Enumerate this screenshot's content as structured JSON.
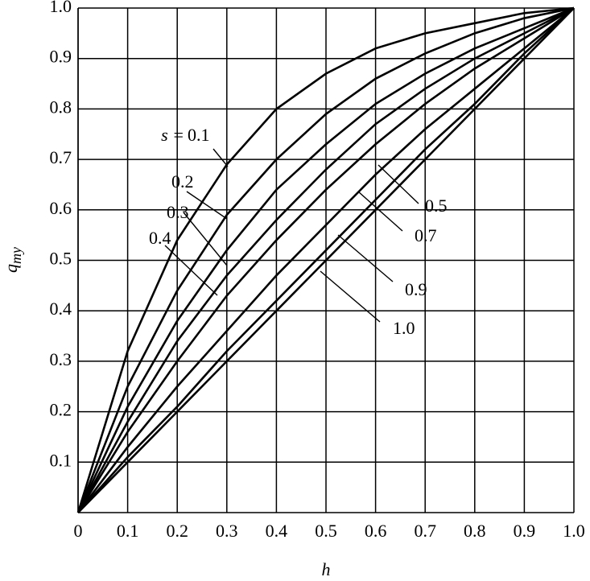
{
  "chart_data": {
    "type": "line",
    "xlabel": "h",
    "ylabel": "q",
    "ylabel_sub": "my",
    "series_label_prefix": "s =",
    "x": [
      0,
      0.1,
      0.2,
      0.3,
      0.4,
      0.5,
      0.6,
      0.7,
      0.8,
      0.9,
      1.0
    ],
    "xlim": [
      0,
      1.0
    ],
    "ylim": [
      0,
      1.0
    ],
    "xticks": [
      0,
      0.1,
      0.2,
      0.3,
      0.4,
      0.5,
      0.6,
      0.7,
      0.8,
      0.9,
      {
        "value": 1,
        "label": "1.0"
      }
    ],
    "yticks": [
      0.1,
      0.2,
      0.3,
      0.4,
      0.5,
      0.6,
      0.7,
      0.8,
      0.9,
      {
        "value": 1,
        "label": "1.0"
      }
    ],
    "grid": true,
    "series": [
      {
        "name": "0.1",
        "color": "#000000",
        "values": [
          0,
          0.32,
          0.54,
          0.69,
          0.8,
          0.87,
          0.92,
          0.95,
          0.97,
          0.99,
          1
        ]
      },
      {
        "name": "0.2",
        "color": "#000000",
        "values": [
          0,
          0.25,
          0.44,
          0.59,
          0.7,
          0.79,
          0.86,
          0.91,
          0.95,
          0.98,
          1
        ]
      },
      {
        "name": "0.3",
        "color": "#000000",
        "values": [
          0,
          0.21,
          0.38,
          0.52,
          0.64,
          0.73,
          0.81,
          0.87,
          0.92,
          0.96,
          1
        ]
      },
      {
        "name": "0.4",
        "color": "#000000",
        "values": [
          0,
          0.18,
          0.34,
          0.47,
          0.58,
          0.68,
          0.77,
          0.84,
          0.9,
          0.95,
          1
        ]
      },
      {
        "name": "0.5",
        "color": "#000000",
        "values": [
          0,
          0.16,
          0.3,
          0.43,
          0.54,
          0.64,
          0.73,
          0.81,
          0.88,
          0.94,
          1
        ]
      },
      {
        "name": "0.7",
        "color": "#000000",
        "values": [
          0,
          0.13,
          0.25,
          0.36,
          0.47,
          0.57,
          0.67,
          0.76,
          0.84,
          0.92,
          1
        ]
      },
      {
        "name": "0.9",
        "color": "#000000",
        "values": [
          0,
          0.11,
          0.21,
          0.32,
          0.42,
          0.52,
          0.62,
          0.72,
          0.81,
          0.91,
          1
        ]
      },
      {
        "name": "1.0",
        "color": "#000000",
        "values": [
          0,
          0.1,
          0.2,
          0.3,
          0.4,
          0.5,
          0.6,
          0.7,
          0.8,
          0.9,
          1
        ]
      }
    ]
  }
}
